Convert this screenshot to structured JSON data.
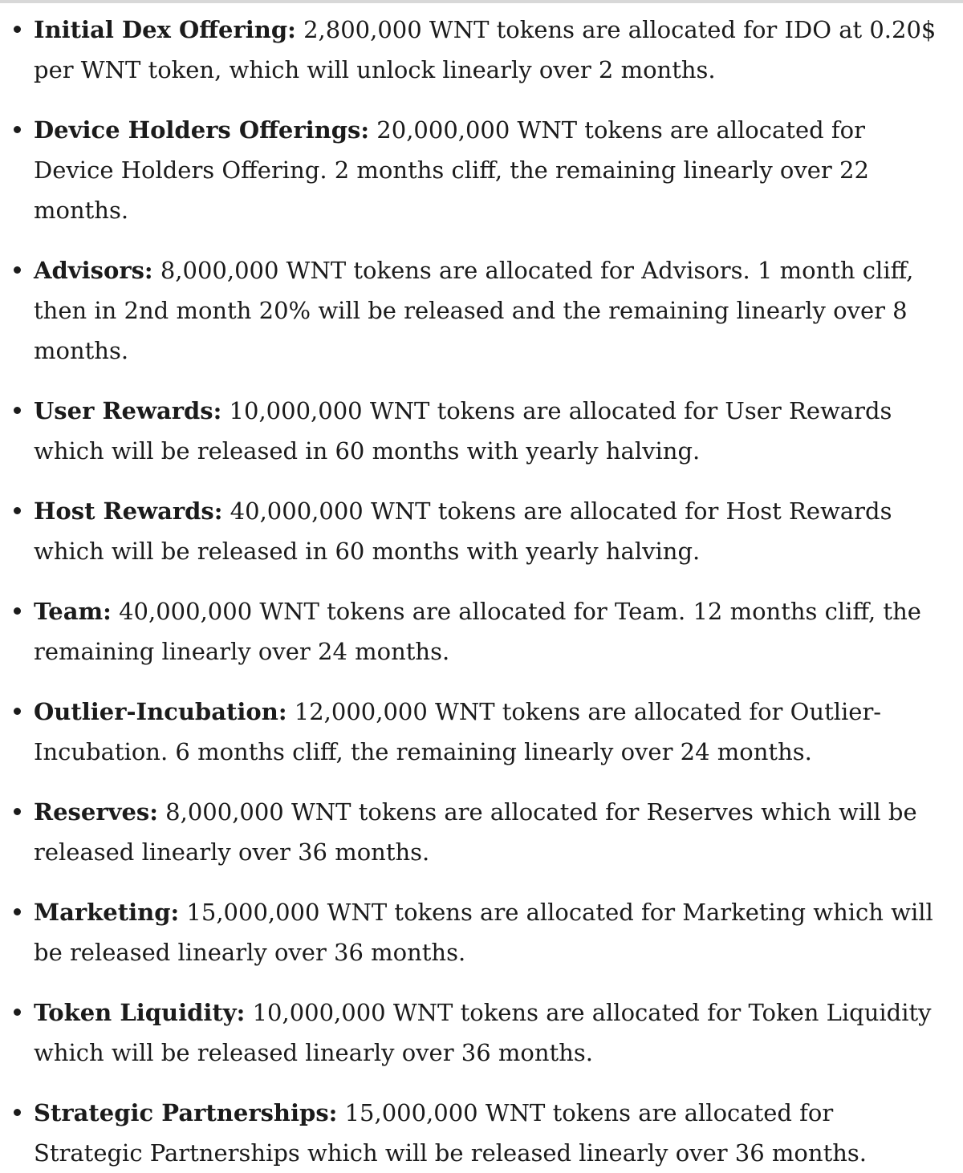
{
  "page": {
    "background_color": "#ffffff",
    "text_color": "#1b1b1b",
    "top_divider_color": "#d8d8d8"
  },
  "list": {
    "items": [
      {
        "label": "Initial Dex Offering:",
        "text": " 2,800,000 WNT tokens are allocated for IDO at 0.20$ per WNT token, which will unlock linearly over 2 months."
      },
      {
        "label": "Device Holders Offerings:",
        "text": " 20,000,000 WNT tokens are allocated for Device Holders Offering. 2 months cliff, the remaining linearly over 22 months."
      },
      {
        "label": "Advisors:",
        "text": " 8,000,000 WNT tokens are allocated for Advisors. 1 month cliff, then in 2nd month 20% will be released and the remaining linearly over 8 months."
      },
      {
        "label": "User Rewards:",
        "text": " 10,000,000 WNT tokens are allocated for User Rewards which will be released in 60 months with yearly halving."
      },
      {
        "label": "Host Rewards:",
        "text": " 40,000,000 WNT tokens are allocated for Host Rewards which will be released in 60 months with yearly halving."
      },
      {
        "label": "Team:",
        "text": " 40,000,000 WNT tokens are allocated for Team. 12 months cliff, the remaining linearly over 24 months."
      },
      {
        "label": "Outlier-Incubation:",
        "text": " 12,000,000 WNT tokens are allocated for Outlier-Incubation. 6 months cliff, the remaining linearly over 24 months."
      },
      {
        "label": "Reserves:",
        "text": " 8,000,000 WNT tokens are allocated for Reserves which will be released linearly over 36 months."
      },
      {
        "label": "Marketing:",
        "text": " 15,000,000 WNT tokens are allocated for Marketing which will be released linearly over 36 months."
      },
      {
        "label": "Token Liquidity:",
        "text": " 10,000,000 WNT tokens are allocated for Token Liquidity which will be released linearly over 36 months."
      },
      {
        "label": "Strategic Partnerships:",
        "text": " 15,000,000 WNT tokens are allocated for Strategic Partnerships which will be released linearly over 36 months."
      }
    ]
  }
}
